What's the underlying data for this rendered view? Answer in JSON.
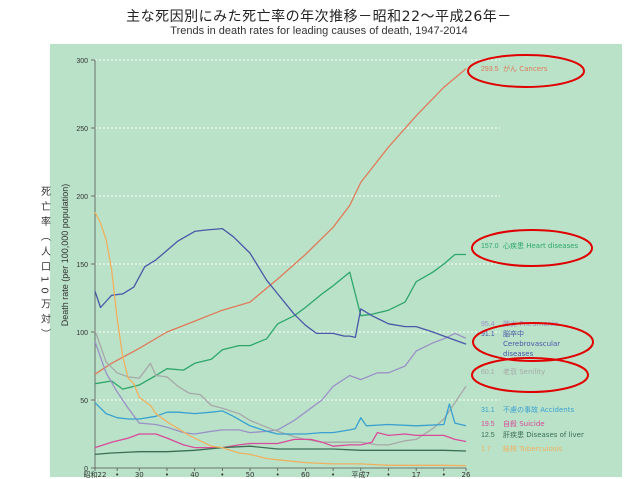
{
  "title_ja": "主な死因別にみた死亡率の年次推移－昭和22～平成26年－",
  "title_en": "Trends in death rates for leading causes of death, 1947-2014",
  "ylabel_ja": "死亡率（人口10万対）",
  "ylabel_en": "Death rate (per 100,000 population)",
  "chart_data": {
    "type": "line",
    "ylim": [
      0,
      300
    ],
    "yticks": [
      0,
      50,
      100,
      150,
      200,
      250,
      300
    ],
    "grid": "horizontal dashed",
    "xlim": [
      1947,
      2014
    ],
    "xtick_labels": [
      {
        "year": 1947,
        "label": "昭和22"
      },
      {
        "year": 1951,
        "label": "•"
      },
      {
        "year": 1955,
        "label": "30"
      },
      {
        "year": 1960,
        "label": "•"
      },
      {
        "year": 1965,
        "label": "40"
      },
      {
        "year": 1970,
        "label": "•"
      },
      {
        "year": 1975,
        "label": "50"
      },
      {
        "year": 1980,
        "label": "•"
      },
      {
        "year": 1985,
        "label": "60"
      },
      {
        "year": 1990,
        "label": "•"
      },
      {
        "year": 1995,
        "label": "平成7"
      },
      {
        "year": 2000,
        "label": "•"
      },
      {
        "year": 2005,
        "label": "17"
      },
      {
        "year": 2010,
        "label": "•"
      },
      {
        "year": 2014,
        "label": "26"
      }
    ],
    "series": [
      {
        "name": "がん Cancers",
        "value_label": "293.5",
        "color": "#e07a5a",
        "points": [
          [
            1947,
            69
          ],
          [
            1950,
            77
          ],
          [
            1955,
            88
          ],
          [
            1960,
            100
          ],
          [
            1965,
            108
          ],
          [
            1970,
            116
          ],
          [
            1975,
            122
          ],
          [
            1980,
            139
          ],
          [
            1985,
            157
          ],
          [
            1990,
            177
          ],
          [
            1993,
            193
          ],
          [
            1995,
            210
          ],
          [
            2000,
            236
          ],
          [
            2005,
            259
          ],
          [
            2010,
            280
          ],
          [
            2014,
            293.5
          ]
        ]
      },
      {
        "name": "心疾患 Heart diseases",
        "value_label": "157.0",
        "color": "#2ea66a",
        "points": [
          [
            1947,
            62
          ],
          [
            1950,
            64
          ],
          [
            1952,
            58
          ],
          [
            1955,
            61
          ],
          [
            1958,
            68
          ],
          [
            1960,
            73
          ],
          [
            1963,
            72
          ],
          [
            1965,
            77
          ],
          [
            1968,
            80
          ],
          [
            1970,
            87
          ],
          [
            1973,
            90
          ],
          [
            1975,
            90
          ],
          [
            1978,
            95
          ],
          [
            1980,
            106
          ],
          [
            1983,
            112
          ],
          [
            1985,
            118
          ],
          [
            1988,
            128
          ],
          [
            1990,
            134
          ],
          [
            1993,
            144
          ],
          [
            1994,
            128
          ],
          [
            1995,
            112
          ],
          [
            1997,
            113
          ],
          [
            2000,
            116
          ],
          [
            2003,
            122
          ],
          [
            2005,
            137
          ],
          [
            2008,
            144
          ],
          [
            2010,
            150
          ],
          [
            2012,
            157
          ],
          [
            2014,
            157
          ]
        ]
      },
      {
        "name": "肺炎 Pneumonia",
        "value_label": "95.4",
        "color": "#9b91c6",
        "points": [
          [
            1947,
            93
          ],
          [
            1949,
            70
          ],
          [
            1951,
            56
          ],
          [
            1953,
            44
          ],
          [
            1955,
            33
          ],
          [
            1958,
            32
          ],
          [
            1960,
            30
          ],
          [
            1963,
            26
          ],
          [
            1965,
            25
          ],
          [
            1968,
            27
          ],
          [
            1970,
            28
          ],
          [
            1973,
            28
          ],
          [
            1975,
            26
          ],
          [
            1978,
            27
          ],
          [
            1980,
            28
          ],
          [
            1983,
            35
          ],
          [
            1985,
            41
          ],
          [
            1988,
            50
          ],
          [
            1990,
            60
          ],
          [
            1993,
            68
          ],
          [
            1995,
            65
          ],
          [
            1998,
            70
          ],
          [
            2000,
            70
          ],
          [
            2003,
            75
          ],
          [
            2005,
            86
          ],
          [
            2008,
            92
          ],
          [
            2010,
            95
          ],
          [
            2012,
            99
          ],
          [
            2014,
            95.4
          ]
        ]
      },
      {
        "name": "脳卒中 Cerebrovascular diseases",
        "value_label": "91.1",
        "color": "#4a57a8",
        "points": [
          [
            1947,
            130
          ],
          [
            1948,
            118
          ],
          [
            1950,
            127
          ],
          [
            1952,
            128
          ],
          [
            1954,
            133
          ],
          [
            1956,
            148
          ],
          [
            1958,
            153
          ],
          [
            1960,
            160
          ],
          [
            1962,
            167
          ],
          [
            1965,
            174
          ],
          [
            1967,
            175
          ],
          [
            1970,
            176
          ],
          [
            1972,
            170
          ],
          [
            1975,
            158
          ],
          [
            1978,
            138
          ],
          [
            1980,
            128
          ],
          [
            1983,
            113
          ],
          [
            1985,
            105
          ],
          [
            1987,
            99
          ],
          [
            1990,
            99
          ],
          [
            1992,
            97
          ],
          [
            1993,
            97
          ],
          [
            1994,
            96
          ],
          [
            1995,
            117
          ],
          [
            1997,
            112
          ],
          [
            2000,
            106
          ],
          [
            2003,
            104
          ],
          [
            2005,
            104
          ],
          [
            2008,
            100
          ],
          [
            2010,
            97
          ],
          [
            2014,
            91.1
          ]
        ]
      },
      {
        "name": "老衰 Senility",
        "value_label": "60.1",
        "color": "#a8a8a8",
        "points": [
          [
            1947,
            101
          ],
          [
            1949,
            78
          ],
          [
            1951,
            70
          ],
          [
            1953,
            67
          ],
          [
            1955,
            66
          ],
          [
            1957,
            77
          ],
          [
            1958,
            68
          ],
          [
            1960,
            67
          ],
          [
            1962,
            60
          ],
          [
            1964,
            55
          ],
          [
            1966,
            54
          ],
          [
            1968,
            46
          ],
          [
            1970,
            44
          ],
          [
            1973,
            40
          ],
          [
            1975,
            35
          ],
          [
            1978,
            30
          ],
          [
            1980,
            27
          ],
          [
            1983,
            23
          ],
          [
            1985,
            21
          ],
          [
            1988,
            19
          ],
          [
            1990,
            19
          ],
          [
            1993,
            19
          ],
          [
            1995,
            19
          ],
          [
            1998,
            17
          ],
          [
            2000,
            17
          ],
          [
            2003,
            20
          ],
          [
            2005,
            21
          ],
          [
            2008,
            29
          ],
          [
            2010,
            36
          ],
          [
            2012,
            48
          ],
          [
            2014,
            60.1
          ]
        ]
      },
      {
        "name": "不慮の事故 Accidents",
        "value_label": "31.1",
        "color": "#3aa0d0",
        "points": [
          [
            1947,
            48
          ],
          [
            1949,
            40
          ],
          [
            1951,
            37
          ],
          [
            1953,
            36
          ],
          [
            1955,
            36
          ],
          [
            1958,
            38
          ],
          [
            1960,
            41
          ],
          [
            1962,
            41
          ],
          [
            1965,
            40
          ],
          [
            1968,
            41
          ],
          [
            1970,
            42
          ],
          [
            1972,
            38
          ],
          [
            1975,
            31
          ],
          [
            1978,
            27
          ],
          [
            1980,
            25
          ],
          [
            1983,
            25
          ],
          [
            1985,
            25
          ],
          [
            1988,
            26
          ],
          [
            1990,
            26
          ],
          [
            1993,
            28
          ],
          [
            1994,
            29
          ],
          [
            1995,
            37
          ],
          [
            1996,
            31
          ],
          [
            2000,
            32
          ],
          [
            2005,
            31
          ],
          [
            2010,
            32
          ],
          [
            2011,
            47
          ],
          [
            2012,
            33
          ],
          [
            2014,
            31.1
          ]
        ]
      },
      {
        "name": "自殺 Suicide",
        "value_label": "19.5",
        "color": "#d94a9a",
        "points": [
          [
            1947,
            15
          ],
          [
            1950,
            19
          ],
          [
            1953,
            22
          ],
          [
            1955,
            25
          ],
          [
            1958,
            25
          ],
          [
            1960,
            22
          ],
          [
            1963,
            17
          ],
          [
            1965,
            15
          ],
          [
            1968,
            15
          ],
          [
            1970,
            15
          ],
          [
            1973,
            17
          ],
          [
            1975,
            18
          ],
          [
            1978,
            18
          ],
          [
            1980,
            18
          ],
          [
            1983,
            21
          ],
          [
            1986,
            21
          ],
          [
            1988,
            19
          ],
          [
            1990,
            16
          ],
          [
            1993,
            17
          ],
          [
            1995,
            17
          ],
          [
            1997,
            19
          ],
          [
            1998,
            26
          ],
          [
            2000,
            24
          ],
          [
            2003,
            25
          ],
          [
            2005,
            24
          ],
          [
            2008,
            24
          ],
          [
            2010,
            24
          ],
          [
            2012,
            21
          ],
          [
            2014,
            19.5
          ]
        ]
      },
      {
        "name": "肝疾患 Diseases of liver",
        "value_label": "12.5",
        "color": "#3a6e55",
        "points": [
          [
            1947,
            10
          ],
          [
            1950,
            11
          ],
          [
            1955,
            12
          ],
          [
            1960,
            12
          ],
          [
            1965,
            13
          ],
          [
            1970,
            15
          ],
          [
            1975,
            16
          ],
          [
            1980,
            14
          ],
          [
            1985,
            14
          ],
          [
            1988,
            14
          ],
          [
            1990,
            14
          ],
          [
            1995,
            13
          ],
          [
            2000,
            13
          ],
          [
            2005,
            13
          ],
          [
            2010,
            13
          ],
          [
            2014,
            12.5
          ]
        ]
      },
      {
        "name": "結核 Tuberculosis",
        "value_label": "1.7",
        "color": "#f0b060",
        "points": [
          [
            1947,
            188
          ],
          [
            1948,
            180
          ],
          [
            1949,
            168
          ],
          [
            1950,
            146
          ],
          [
            1951,
            110
          ],
          [
            1952,
            82
          ],
          [
            1953,
            66
          ],
          [
            1954,
            62
          ],
          [
            1955,
            52
          ],
          [
            1957,
            46
          ],
          [
            1958,
            40
          ],
          [
            1960,
            34
          ],
          [
            1962,
            29
          ],
          [
            1964,
            24
          ],
          [
            1966,
            20
          ],
          [
            1968,
            16
          ],
          [
            1970,
            15
          ],
          [
            1973,
            11
          ],
          [
            1975,
            10
          ],
          [
            1978,
            7
          ],
          [
            1980,
            6
          ],
          [
            1985,
            4
          ],
          [
            1990,
            3
          ],
          [
            1995,
            3
          ],
          [
            2000,
            2
          ],
          [
            2005,
            2
          ],
          [
            2010,
            2
          ],
          [
            2014,
            1.7
          ]
        ]
      }
    ]
  }
}
